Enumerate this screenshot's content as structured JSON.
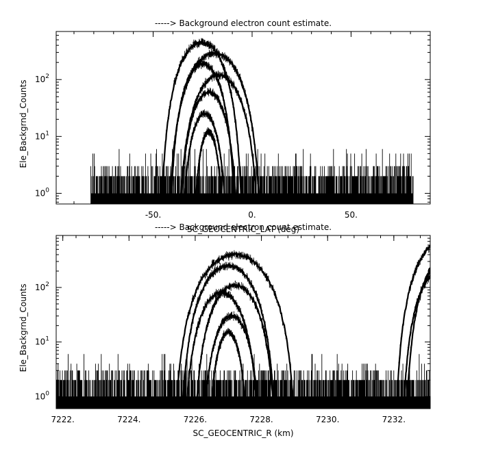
{
  "chart_data": [
    {
      "type": "scatter",
      "title": "-----> Background electron count estimate.",
      "xlabel": "SC_GEOCENTRIC_LAT (deg)",
      "ylabel": "Ele_Backgrnd_Counts",
      "xlim": [
        -99,
        90
      ],
      "ylim": [
        0.65,
        700
      ],
      "y_scale": "log",
      "x_ticks": [
        -50,
        0,
        50
      ],
      "x_tick_labels": [
        "-50.",
        "0.",
        "50."
      ],
      "y_tick_labels": [
        "10^0",
        "10^1",
        "10^2"
      ],
      "background": {
        "x_range": [
          -81.5,
          81.5
        ],
        "baseline": [
          1,
          2
        ],
        "max_spikes": [
          5,
          6
        ]
      },
      "series": [
        {
          "center": -25.5,
          "half_width": 21.5,
          "peak": 450
        },
        {
          "center": -19.0,
          "half_width": 24.5,
          "peak": 290
        },
        {
          "center": -25.0,
          "half_width": 17.5,
          "peak": 190
        },
        {
          "center": -17.0,
          "half_width": 21.5,
          "peak": 120
        },
        {
          "center": -22.0,
          "half_width": 16.0,
          "peak": 60
        },
        {
          "center": -24.0,
          "half_width": 12.5,
          "peak": 25
        },
        {
          "center": -22.0,
          "half_width": 8.5,
          "peak": 12
        }
      ]
    },
    {
      "type": "scatter",
      "title": "-----> Background electron count estimate.",
      "xlabel": "SC_GEOCENTRIC_R (km)",
      "ylabel": "Ele_Backgrnd_Counts",
      "xlim": [
        7221.8,
        7233.1
      ],
      "ylim": [
        0.6,
        900
      ],
      "y_scale": "log",
      "x_ticks": [
        7222,
        7224,
        7226,
        7228,
        7230,
        7232
      ],
      "x_tick_labels": [
        "7222.",
        "7224.",
        "7226.",
        "7228.",
        "7230.",
        "7232."
      ],
      "y_tick_labels": [
        "10^0",
        "10^1",
        "10^2"
      ],
      "background": {
        "x_range": [
          7221.8,
          7233.1
        ],
        "baseline": [
          1,
          2
        ],
        "max_spikes": [
          4,
          6
        ]
      },
      "series": [
        {
          "center": 7227.2,
          "half_width": 1.9,
          "peak": 400
        },
        {
          "center": 7227.0,
          "half_width": 1.5,
          "peak": 250
        },
        {
          "center": 7227.2,
          "half_width": 1.3,
          "peak": 110
        },
        {
          "center": 7226.8,
          "half_width": 1.2,
          "peak": 80
        },
        {
          "center": 7227.1,
          "half_width": 0.95,
          "peak": 30
        },
        {
          "center": 7227.0,
          "half_width": 0.65,
          "peak": 15
        },
        {
          "center": 7233.6,
          "half_width": 1.6,
          "peak": 800
        },
        {
          "center": 7233.4,
          "half_width": 1.2,
          "peak": 200
        },
        {
          "center": 7233.7,
          "half_width": 1.4,
          "peak": 400
        }
      ]
    }
  ]
}
